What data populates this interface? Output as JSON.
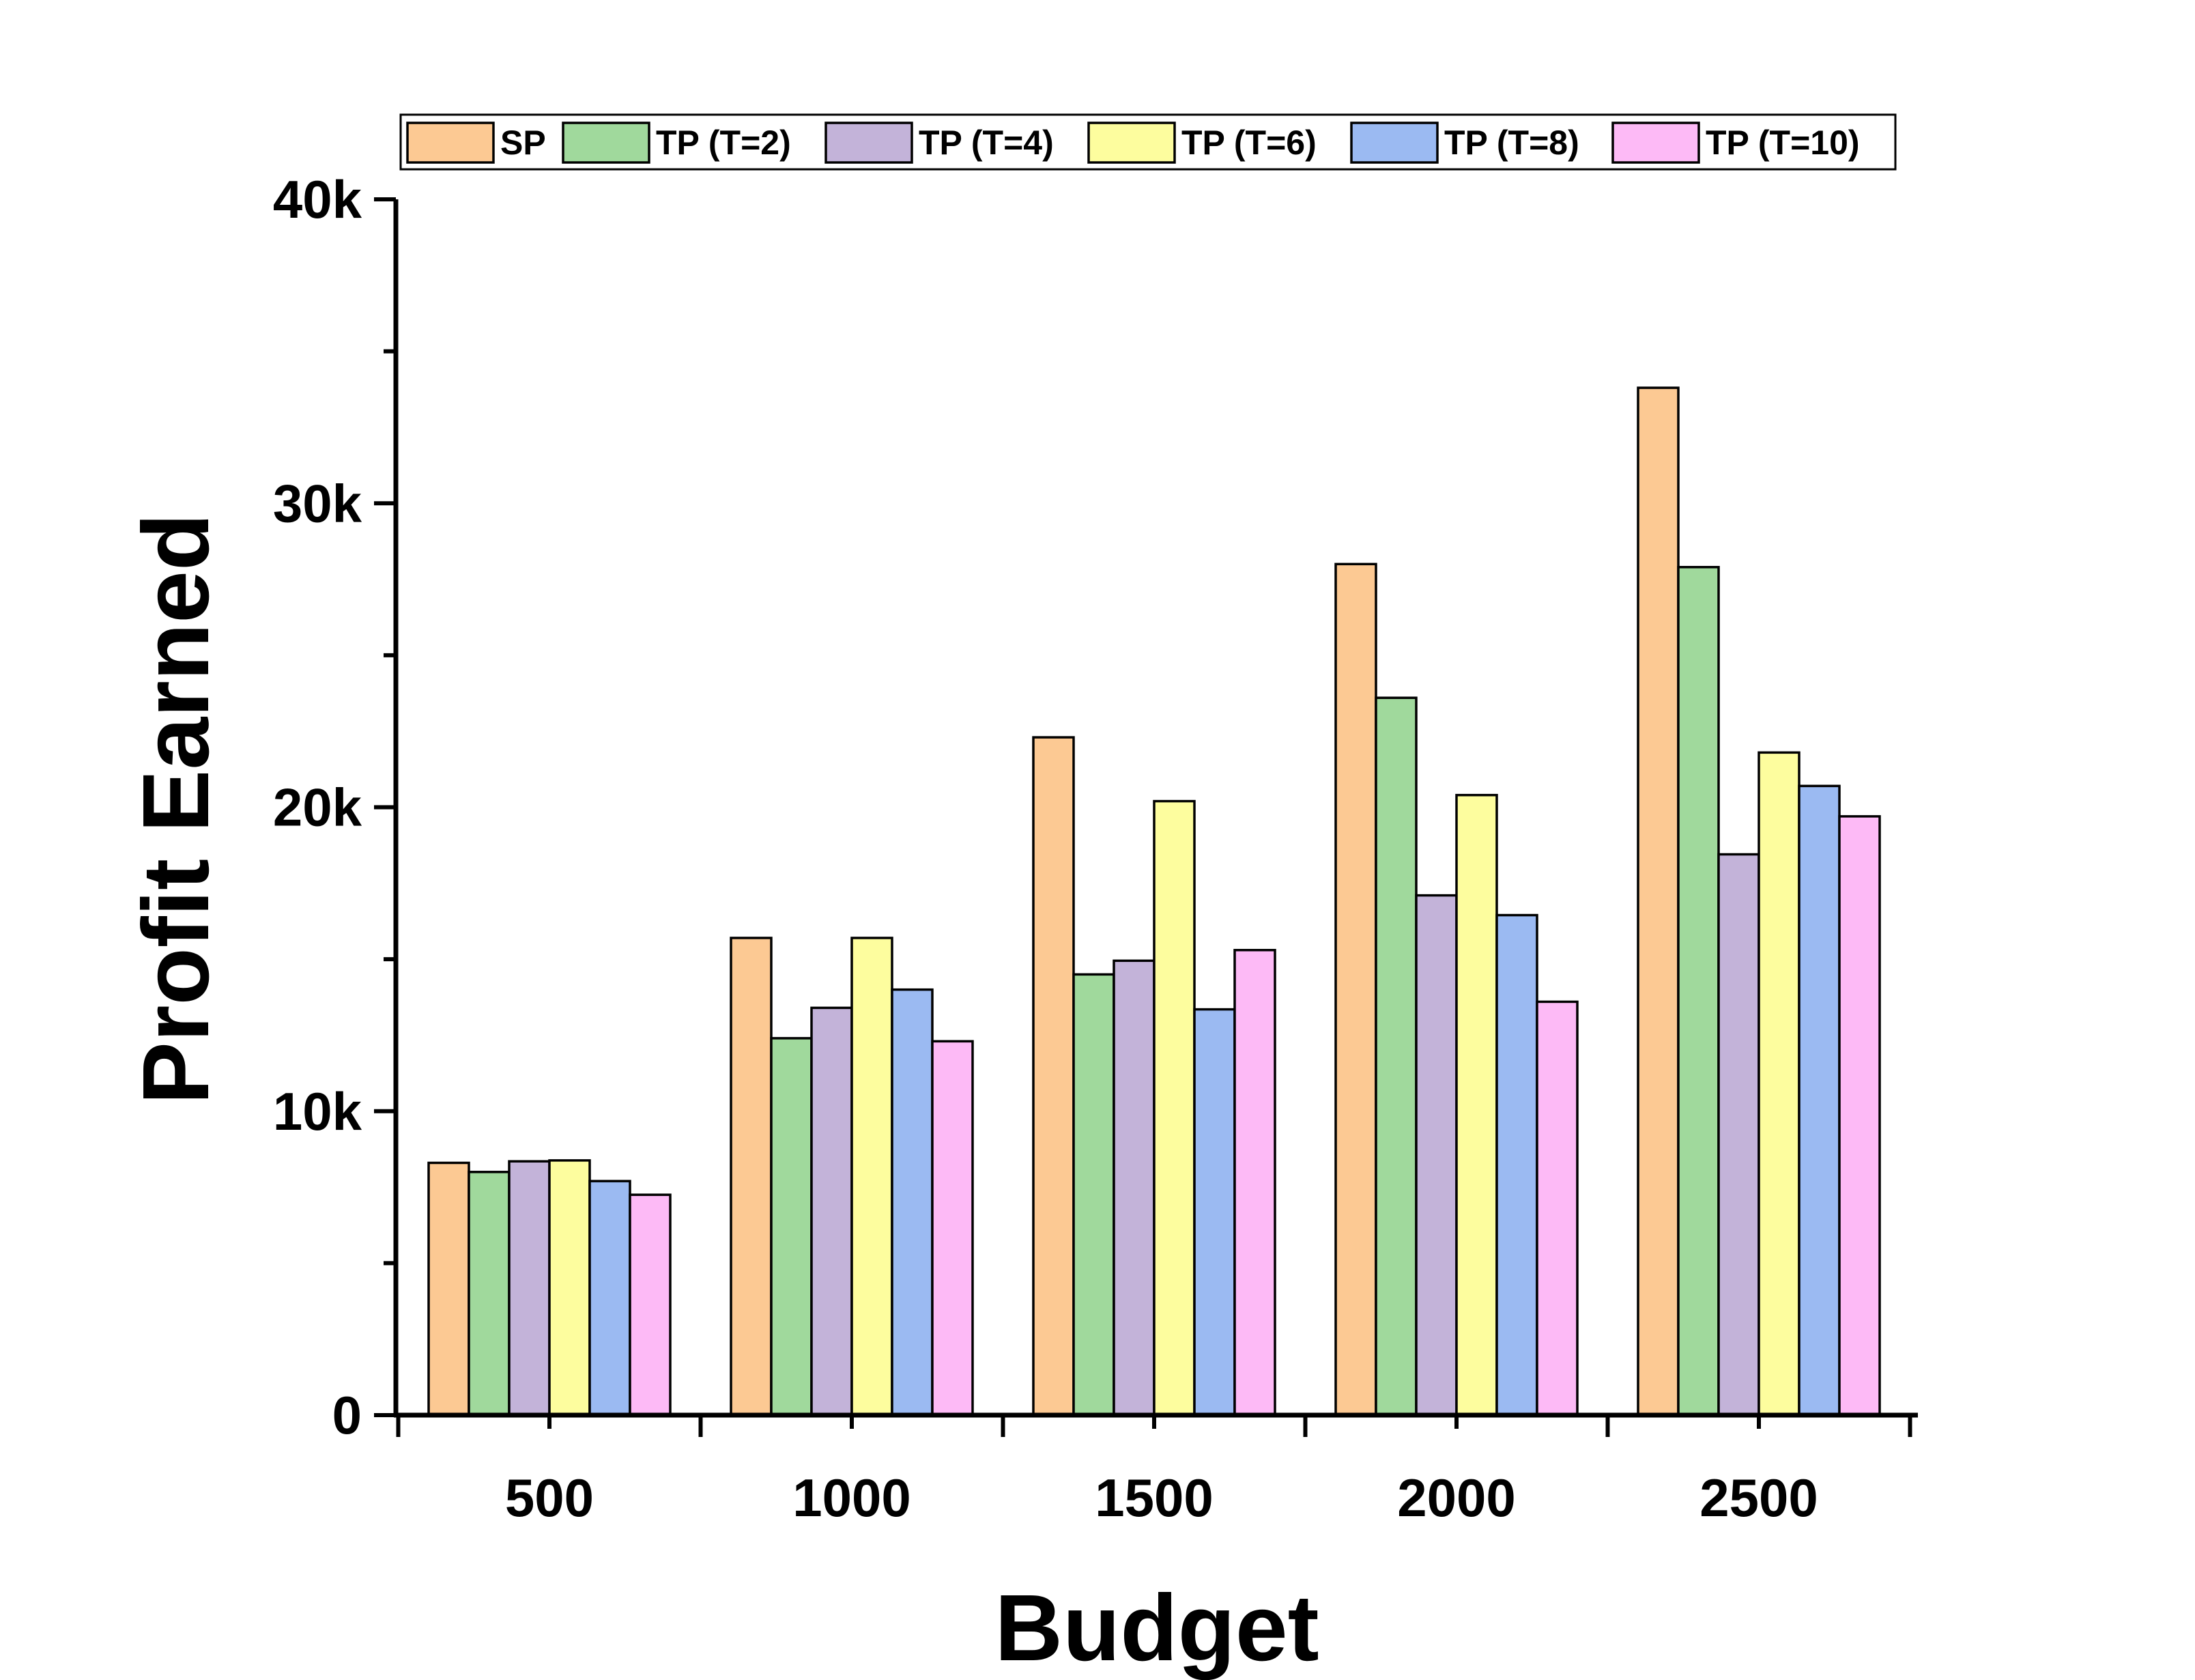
{
  "chart_data": {
    "type": "bar",
    "xlabel": "Budget",
    "ylabel": "Profit Earned",
    "categories": [
      "500",
      "1000",
      "1500",
      "2000",
      "2500"
    ],
    "ylim": [
      0,
      40000
    ],
    "yticks": [
      {
        "value": 0,
        "label": "0"
      },
      {
        "value": 10000,
        "label": "10k"
      },
      {
        "value": 20000,
        "label": "20k"
      },
      {
        "value": 30000,
        "label": "30k"
      },
      {
        "value": 40000,
        "label": "40k"
      }
    ],
    "legend_position": "top",
    "grid": false,
    "series": [
      {
        "name": "SP",
        "color": "#FCC993",
        "values": [
          8300,
          15700,
          22300,
          28000,
          33800
        ]
      },
      {
        "name": "TP (T=2)",
        "color": "#A0D99C",
        "values": [
          8000,
          12400,
          14500,
          23600,
          27900
        ]
      },
      {
        "name": "TP (T=4)",
        "color": "#C3B3D9",
        "values": [
          8350,
          13400,
          14950,
          17100,
          18450
        ]
      },
      {
        "name": "TP (T=6)",
        "color": "#FDFD9E",
        "values": [
          8380,
          15700,
          20200,
          20400,
          21800
        ]
      },
      {
        "name": "TP (T=8)",
        "color": "#9BBAF2",
        "values": [
          7700,
          14000,
          13350,
          16450,
          20700
        ]
      },
      {
        "name": "TP (T=10)",
        "color": "#FDBAF6",
        "values": [
          7250,
          12300,
          15300,
          13600,
          19700
        ]
      }
    ]
  }
}
